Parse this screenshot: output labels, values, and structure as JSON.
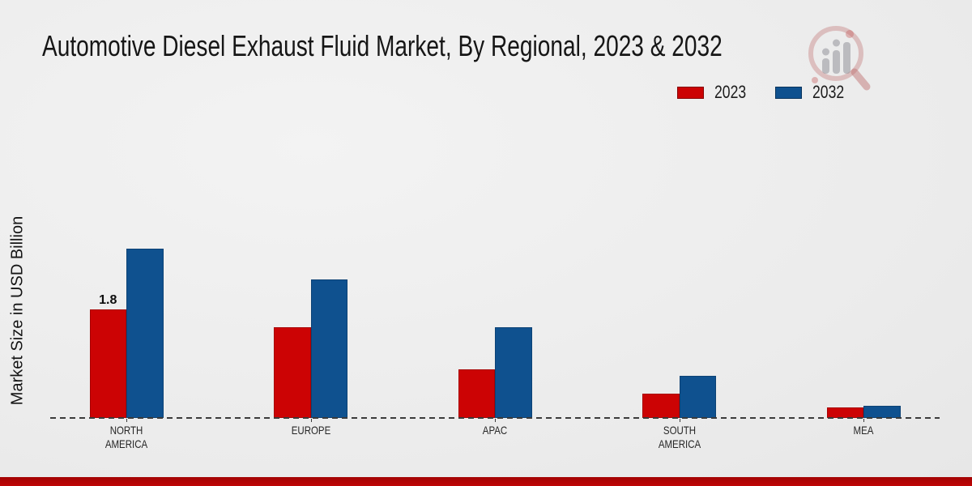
{
  "title": "Automotive Diesel Exhaust Fluid Market, By Regional, 2023 & 2032",
  "legend": {
    "position": "top-right",
    "items": [
      {
        "label": "2023",
        "color": "#cc0304"
      },
      {
        "label": "2032",
        "color": "#0f518f"
      }
    ]
  },
  "chart_data": {
    "type": "bar",
    "title": "Automotive Diesel Exhaust Fluid Market, By Regional, 2023 & 2032",
    "xlabel": "",
    "ylabel": "Market Size in USD Billion",
    "categories": [
      "NORTH AMERICA",
      "EUROPE",
      "APAC",
      "SOUTH AMERICA",
      "MEA"
    ],
    "category_lines": [
      [
        "NORTH",
        "AMERICA"
      ],
      [
        "EUROPE"
      ],
      [
        "APAC"
      ],
      [
        "SOUTH",
        "AMERICA"
      ],
      [
        "MEA"
      ]
    ],
    "series": [
      {
        "name": "2023",
        "color": "#cc0304",
        "values": [
          1.8,
          1.5,
          0.8,
          0.4,
          0.17
        ]
      },
      {
        "name": "2032",
        "color": "#0f518f",
        "values": [
          2.8,
          2.3,
          1.5,
          0.7,
          0.2
        ]
      }
    ],
    "annotations": [
      {
        "category_index": 0,
        "series_index": 0,
        "text": "1.8"
      }
    ],
    "ylim": [
      0,
      3.2
    ],
    "grid": false,
    "axis_style": "dashed-baseline-only",
    "legend_position": "top-right"
  },
  "watermark": {
    "icon": "magnifier-bar-chart-logo"
  },
  "footer_band_color": "#bf0505"
}
